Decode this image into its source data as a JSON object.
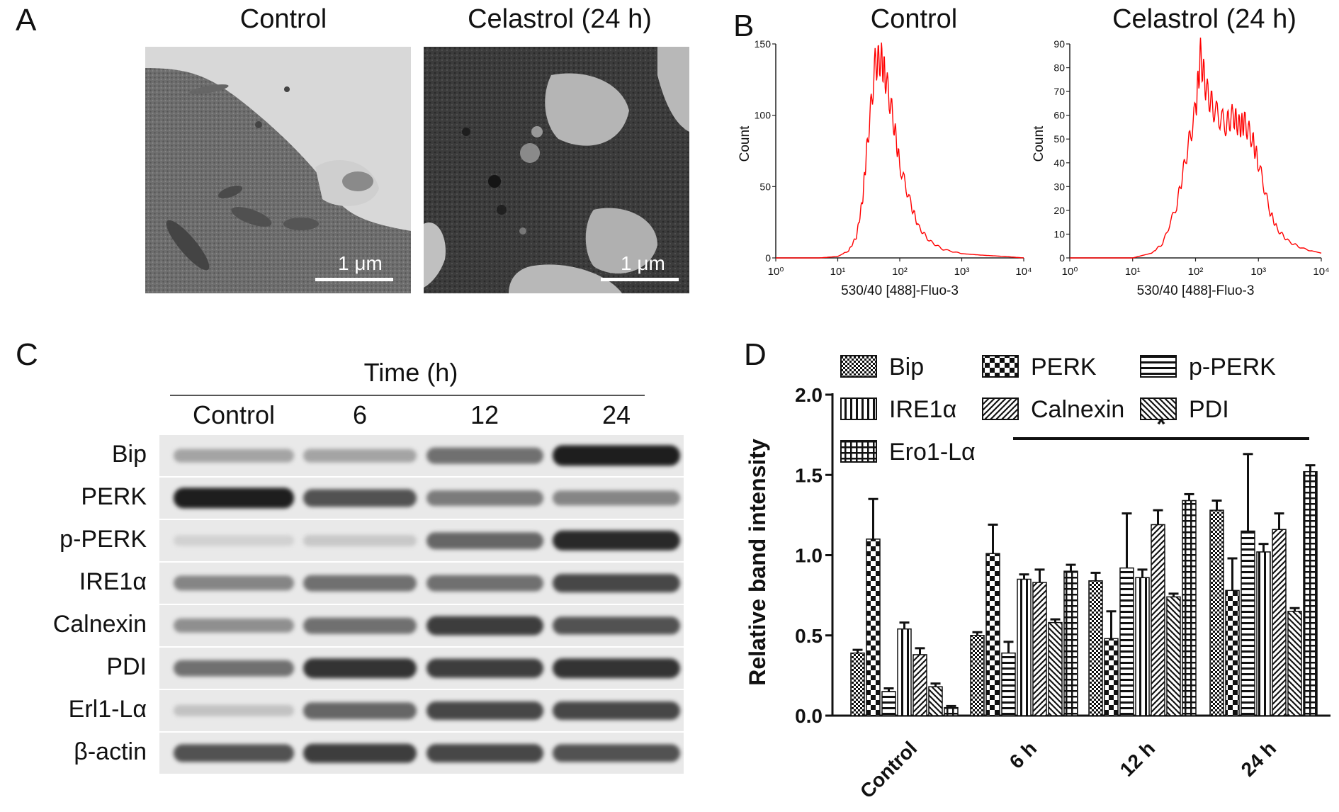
{
  "panelA": {
    "label": "A",
    "titles": [
      "Control",
      "Celastrol (24 h)"
    ],
    "scale_label": "1 μm"
  },
  "panelB": {
    "label": "B",
    "titles": [
      "Control",
      "Celastrol (24 h)"
    ],
    "ylabel": "Count",
    "xlabel": "530/40 [488]-Fluo-3",
    "line_color": "#ff0000"
  },
  "panelC": {
    "label": "C",
    "time_label": "Time (h)",
    "columns": [
      "Control",
      "6",
      "12",
      "24"
    ],
    "proteins": [
      "Bip",
      "PERK",
      "p-PERK",
      "IRE1α",
      "Calnexin",
      "PDI",
      "Erl1-Lα",
      "β-actin"
    ],
    "intensity": [
      [
        0.3,
        0.3,
        0.55,
        0.95
      ],
      [
        0.95,
        0.7,
        0.5,
        0.45
      ],
      [
        0.08,
        0.12,
        0.6,
        0.9
      ],
      [
        0.45,
        0.55,
        0.55,
        0.75
      ],
      [
        0.4,
        0.55,
        0.8,
        0.7
      ],
      [
        0.55,
        0.85,
        0.8,
        0.85
      ],
      [
        0.15,
        0.6,
        0.75,
        0.75
      ],
      [
        0.7,
        0.8,
        0.75,
        0.7
      ]
    ]
  },
  "panelD": {
    "label": "D",
    "significance": "*"
  },
  "chart_data": [
    {
      "type": "line",
      "title": "Control",
      "xlabel": "530/40 [488]-Fluo-3",
      "ylabel": "Count",
      "xscale": "log",
      "xlim": [
        1,
        10000
      ],
      "ylim": [
        0,
        150
      ],
      "yticks": [
        0,
        50,
        100,
        150
      ],
      "xticks": [
        1,
        10,
        100,
        1000,
        10000
      ],
      "x": [
        1,
        5,
        10,
        15,
        20,
        25,
        30,
        40,
        50,
        60,
        80,
        100,
        150,
        200,
        300,
        500,
        1000,
        2000,
        5000,
        10000
      ],
      "values": [
        0,
        0,
        1,
        5,
        15,
        40,
        80,
        135,
        140,
        125,
        95,
        65,
        38,
        22,
        12,
        6,
        3,
        2,
        1,
        0
      ]
    },
    {
      "type": "line",
      "title": "Celastrol (24 h)",
      "xlabel": "530/40 [488]-Fluo-3",
      "ylabel": "Count",
      "xscale": "log",
      "xlim": [
        1,
        10000
      ],
      "ylim": [
        0,
        90
      ],
      "yticks": [
        0,
        10,
        20,
        30,
        40,
        50,
        60,
        70,
        80,
        90
      ],
      "xticks": [
        1,
        10,
        100,
        1000,
        10000
      ],
      "x": [
        1,
        10,
        20,
        30,
        50,
        70,
        100,
        120,
        150,
        200,
        300,
        400,
        500,
        600,
        800,
        1000,
        1500,
        2000,
        3000,
        5000,
        10000
      ],
      "values": [
        0,
        0,
        2,
        6,
        22,
        42,
        62,
        85,
        70,
        62,
        56,
        60,
        55,
        57,
        50,
        40,
        20,
        12,
        7,
        4,
        2
      ]
    },
    {
      "type": "bar",
      "ylabel": "Relative band intensity",
      "xlabel": "",
      "ylim": [
        0,
        2.0
      ],
      "yticks": [
        0.0,
        0.5,
        1.0,
        1.5,
        2.0
      ],
      "categories": [
        "Control",
        "6 h",
        "12 h",
        "24 h"
      ],
      "legend_placement": "top",
      "series": [
        {
          "name": "Bip",
          "values": [
            0.39,
            0.5,
            0.84,
            1.28
          ],
          "errors": [
            0.02,
            0.02,
            0.05,
            0.06
          ]
        },
        {
          "name": "PERK",
          "values": [
            1.1,
            1.01,
            0.48,
            0.78
          ],
          "errors": [
            0.25,
            0.18,
            0.17,
            0.2
          ]
        },
        {
          "name": "p-PERK",
          "values": [
            0.15,
            0.39,
            0.92,
            1.15
          ],
          "errors": [
            0.02,
            0.07,
            0.34,
            0.48
          ]
        },
        {
          "name": "IRE1α",
          "values": [
            0.54,
            0.85,
            0.86,
            1.02
          ],
          "errors": [
            0.04,
            0.03,
            0.05,
            0.05
          ]
        },
        {
          "name": "Calnexin",
          "values": [
            0.38,
            0.83,
            1.19,
            1.16
          ],
          "errors": [
            0.04,
            0.08,
            0.09,
            0.1
          ]
        },
        {
          "name": "PDI",
          "values": [
            0.18,
            0.58,
            0.74,
            0.65
          ],
          "errors": [
            0.02,
            0.02,
            0.02,
            0.02
          ]
        },
        {
          "name": "Ero1-Lα",
          "values": [
            0.05,
            0.9,
            1.34,
            1.52
          ],
          "errors": [
            0.01,
            0.04,
            0.04,
            0.04
          ]
        }
      ],
      "annotation": "*"
    }
  ]
}
